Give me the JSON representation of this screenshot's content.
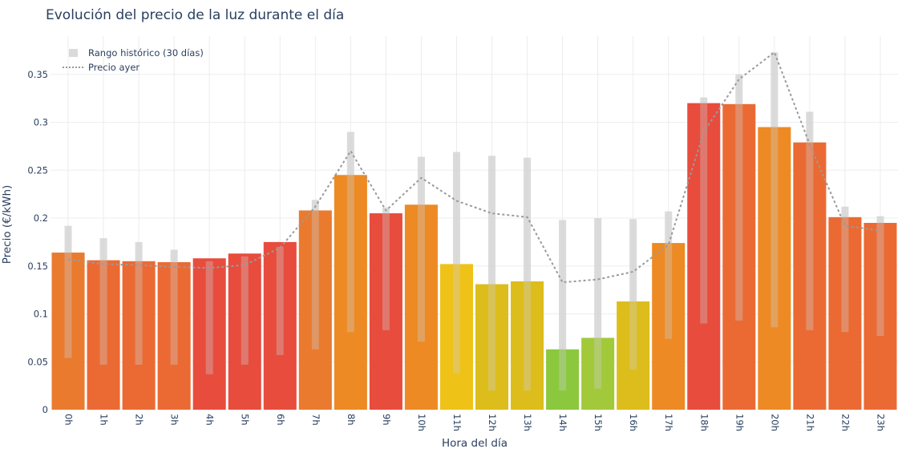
{
  "chart_data": {
    "type": "bar",
    "title": "Evolución del precio de la luz durante el día",
    "xlabel": "Hora del día",
    "ylabel": "Precio (€/kWh)",
    "ylim": [
      0,
      0.39
    ],
    "yticks": [
      0,
      0.05,
      0.1,
      0.15,
      0.2,
      0.25,
      0.3,
      0.35
    ],
    "ytick_labels": [
      "0",
      "0.05",
      "0.1",
      "0.15",
      "0.2",
      "0.25",
      "0.3",
      "0.35"
    ],
    "categories": [
      "0h",
      "1h",
      "2h",
      "3h",
      "4h",
      "5h",
      "6h",
      "7h",
      "8h",
      "9h",
      "10h",
      "11h",
      "12h",
      "13h",
      "14h",
      "15h",
      "16h",
      "17h",
      "18h",
      "19h",
      "20h",
      "21h",
      "22h",
      "23h"
    ],
    "grid": true,
    "legend_position": "top-left",
    "series": [
      {
        "name": "",
        "kind": "bar",
        "values": [
          0.164,
          0.156,
          0.155,
          0.154,
          0.158,
          0.163,
          0.175,
          0.208,
          0.245,
          0.205,
          0.214,
          0.152,
          0.131,
          0.134,
          0.063,
          0.075,
          0.113,
          0.174,
          0.32,
          0.319,
          0.295,
          0.279,
          0.201,
          0.195
        ],
        "colors": [
          "#ea7a2e",
          "#eb6a33",
          "#eb6a33",
          "#eb6a33",
          "#e84c3d",
          "#e84c3d",
          "#e84c3d",
          "#ea7a2e",
          "#ed8a24",
          "#e84c3d",
          "#ed8a24",
          "#efc217",
          "#dcbd1c",
          "#dcbd1c",
          "#8bc83e",
          "#a2c93a",
          "#dcbd1c",
          "#ed8a24",
          "#e84c3d",
          "#eb6a33",
          "#ed8a24",
          "#eb6a33",
          "#eb6a33",
          "#eb6a33"
        ]
      },
      {
        "name": "Rango histórico (30 días)",
        "kind": "range",
        "color": "#d6d6d6",
        "low": [
          0.054,
          0.047,
          0.047,
          0.047,
          0.037,
          0.047,
          0.057,
          0.063,
          0.081,
          0.083,
          0.071,
          0.038,
          0.02,
          0.02,
          0.02,
          0.022,
          0.042,
          0.074,
          0.09,
          0.093,
          0.086,
          0.083,
          0.081,
          0.077
        ],
        "high": [
          0.192,
          0.179,
          0.175,
          0.167,
          0.155,
          0.16,
          0.17,
          0.219,
          0.29,
          0.211,
          0.264,
          0.269,
          0.265,
          0.263,
          0.198,
          0.2,
          0.199,
          0.207,
          0.326,
          0.35,
          0.373,
          0.311,
          0.212,
          0.202
        ]
      },
      {
        "name": "Precio ayer",
        "kind": "line",
        "color": "#9a9a9a",
        "values": [
          0.157,
          0.152,
          0.151,
          0.149,
          0.148,
          0.151,
          0.169,
          0.212,
          0.27,
          0.208,
          0.242,
          0.218,
          0.205,
          0.201,
          0.133,
          0.136,
          0.144,
          0.172,
          0.29,
          0.345,
          0.373,
          0.277,
          0.192,
          0.187
        ]
      }
    ]
  }
}
